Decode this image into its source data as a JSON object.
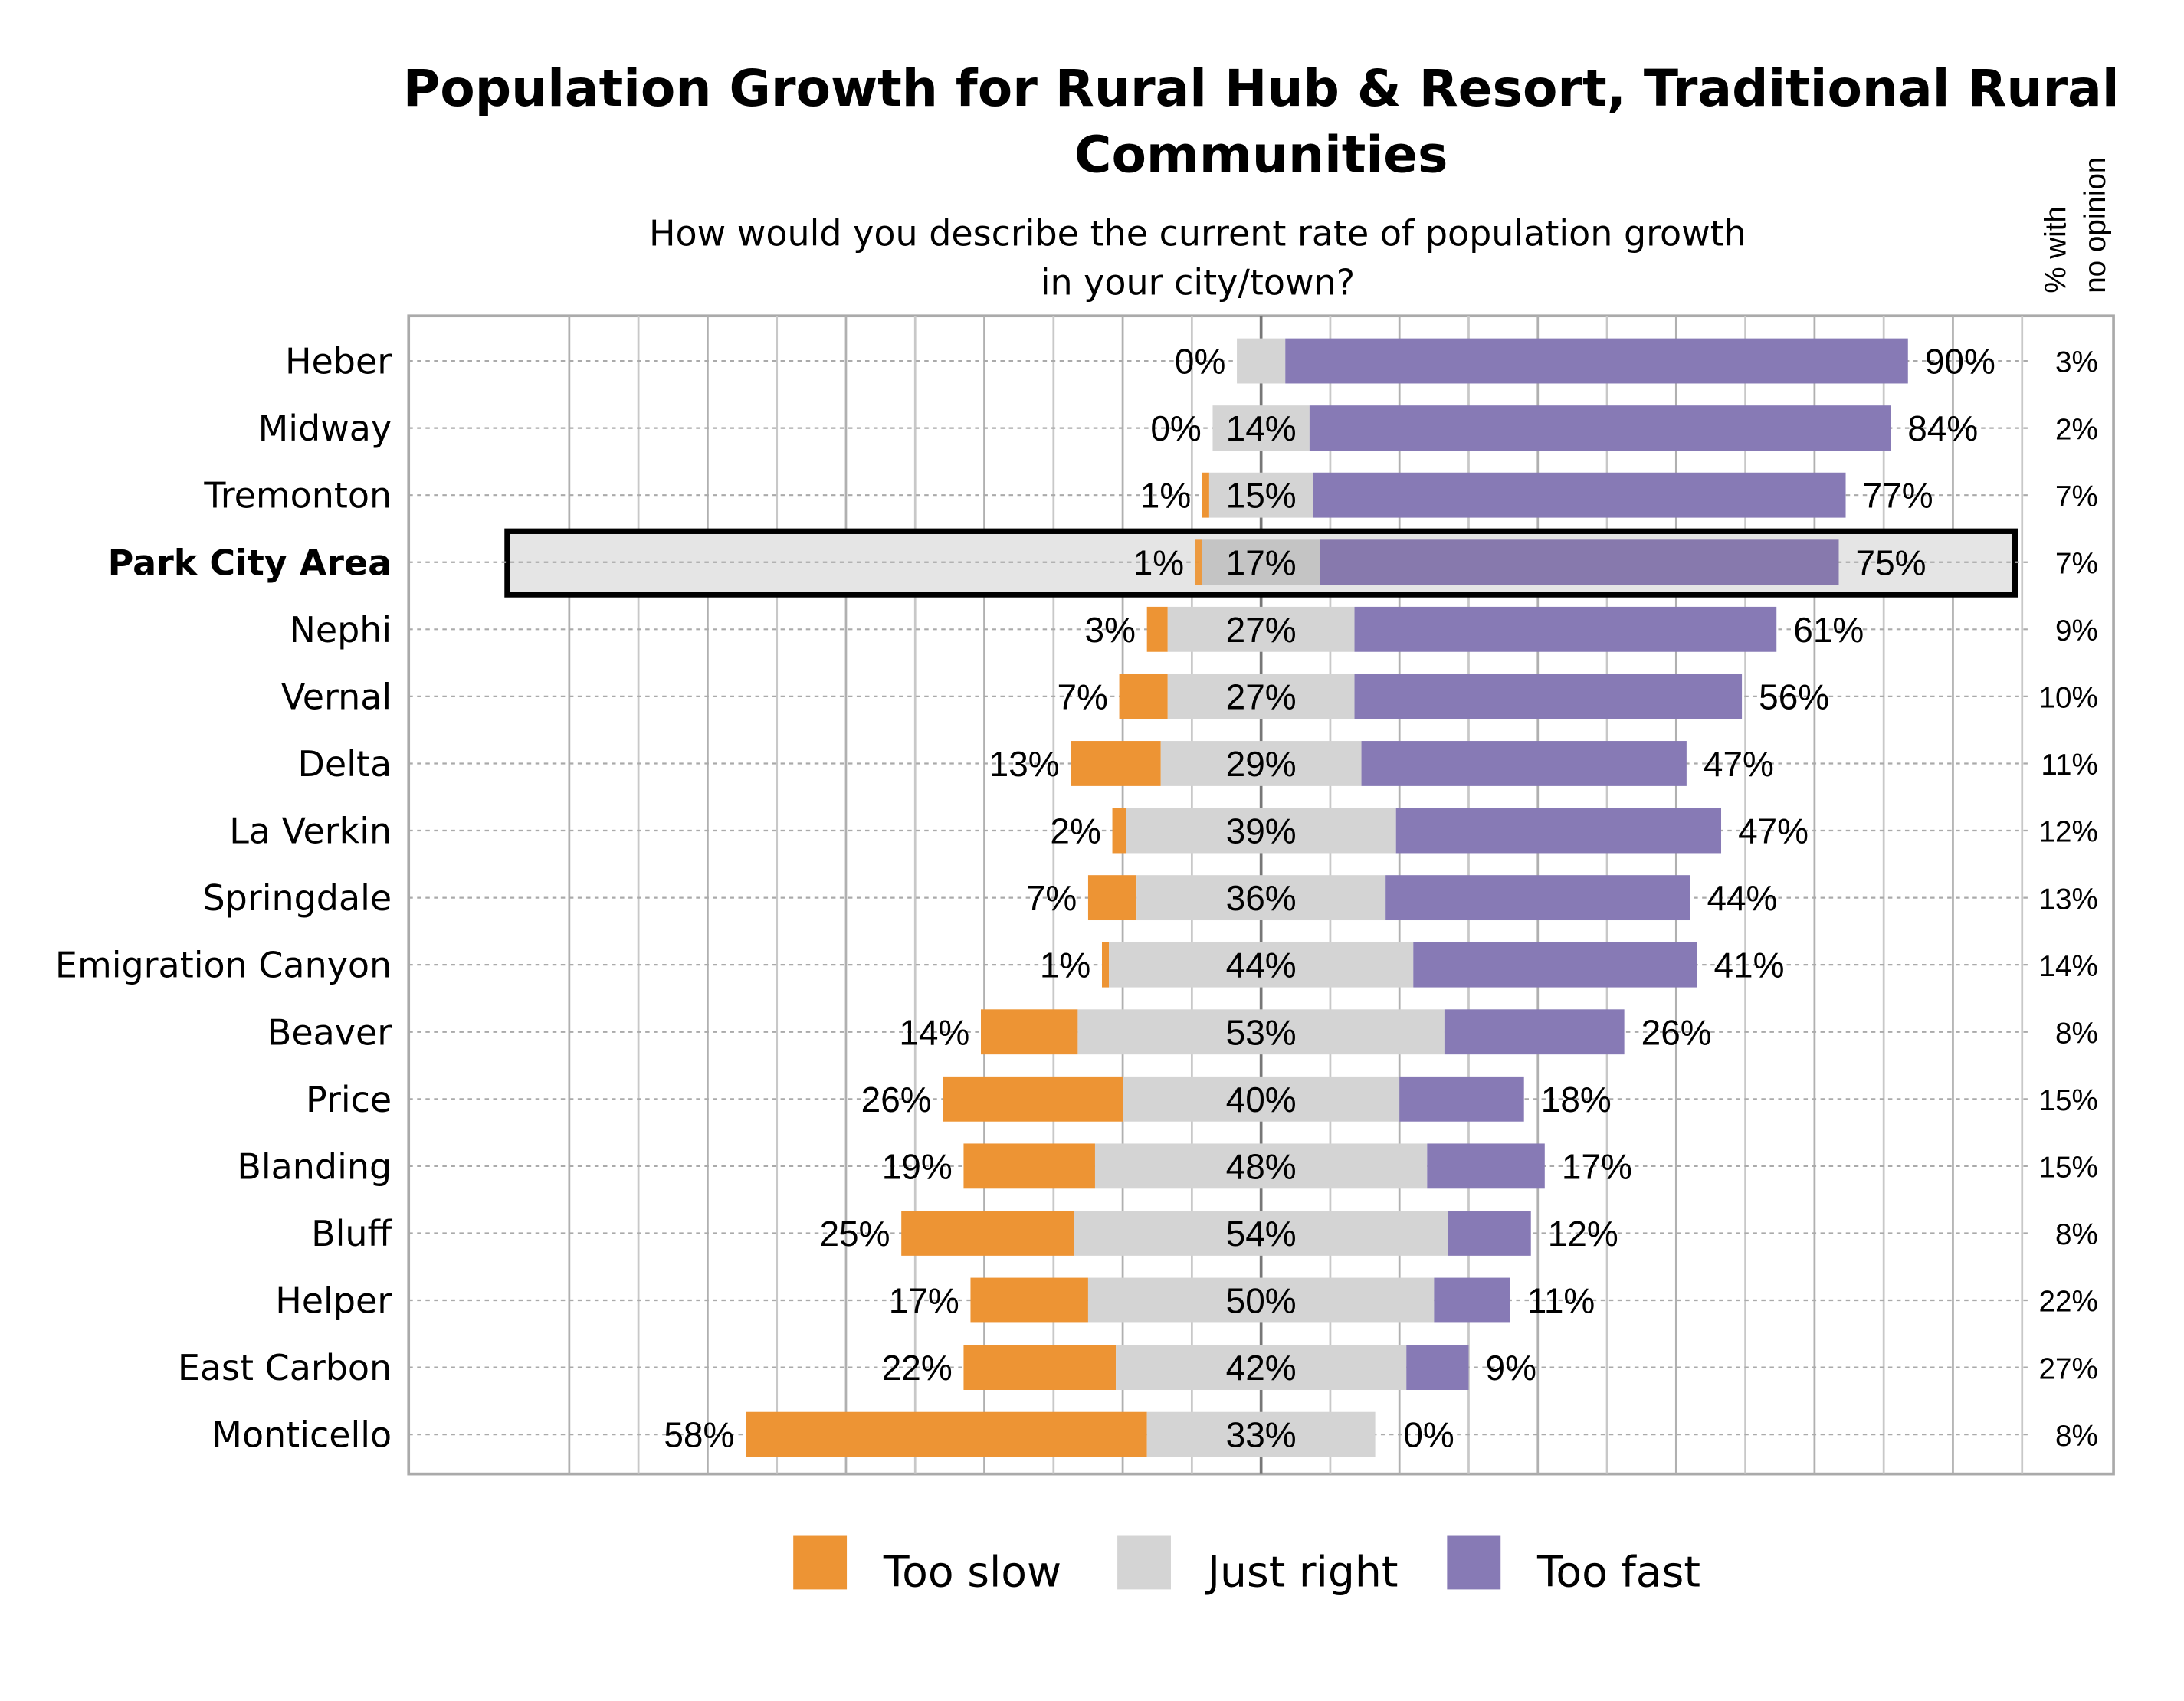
{
  "chart_data": {
    "type": "bar",
    "orientation": "horizontal-diverging-stacked",
    "title": "Population Growth for Rural Hub & Resort, Traditional Rural Communities",
    "title_lines": [
      "Population Growth for Rural Hub & Resort, Traditional Rural",
      "Communities"
    ],
    "subtitle_lines": [
      "How would you describe the current rate of population growth",
      "in your city/town?"
    ],
    "side_header_lines": [
      "% with",
      "no opinion"
    ],
    "highlighted_category": "Park City Area",
    "grid": true,
    "legend_placement": "bottom",
    "colors": {
      "Too slow": "#ed9434",
      "Just right": "#d4d4d4",
      "Too fast": "#877ab5",
      "highlight": "#e5e5e5"
    },
    "categories": [
      "Heber",
      "Midway",
      "Tremonton",
      "Park City Area",
      "Nephi",
      "Vernal",
      "Delta",
      "La Verkin",
      "Springdale",
      "Emigration Canyon",
      "Beaver",
      "Price",
      "Blanding",
      "Bluff",
      "Helper",
      "East Carbon",
      "Monticello"
    ],
    "series": [
      {
        "name": "Too slow",
        "values": [
          0,
          0,
          1,
          1,
          3,
          7,
          13,
          2,
          7,
          1,
          14,
          26,
          19,
          25,
          17,
          22,
          58
        ],
        "labels": [
          "0%",
          "0%",
          "1%",
          "1%",
          "3%",
          "7%",
          "13%",
          "2%",
          "7%",
          "1%",
          "14%",
          "26%",
          "19%",
          "25%",
          "17%",
          "22%",
          "58%"
        ]
      },
      {
        "name": "Just right",
        "values": [
          7,
          14,
          15,
          17,
          27,
          27,
          29,
          39,
          36,
          44,
          53,
          40,
          48,
          54,
          50,
          42,
          33
        ],
        "labels": [
          "",
          "14%",
          "15%",
          "17%",
          "27%",
          "27%",
          "29%",
          "39%",
          "36%",
          "44%",
          "53%",
          "40%",
          "48%",
          "54%",
          "50%",
          "42%",
          "33%"
        ]
      },
      {
        "name": "Too fast",
        "values": [
          90,
          84,
          77,
          75,
          61,
          56,
          47,
          47,
          44,
          41,
          26,
          18,
          17,
          12,
          11,
          9,
          0
        ],
        "labels": [
          "90%",
          "84%",
          "77%",
          "75%",
          "61%",
          "56%",
          "47%",
          "47%",
          "44%",
          "41%",
          "26%",
          "18%",
          "17%",
          "12%",
          "11%",
          "9%",
          "0%"
        ]
      }
    ],
    "no_opinion": [
      "3%",
      "2%",
      "7%",
      "7%",
      "9%",
      "10%",
      "11%",
      "12%",
      "13%",
      "14%",
      "8%",
      "15%",
      "15%",
      "8%",
      "22%",
      "27%",
      "8%"
    ]
  }
}
